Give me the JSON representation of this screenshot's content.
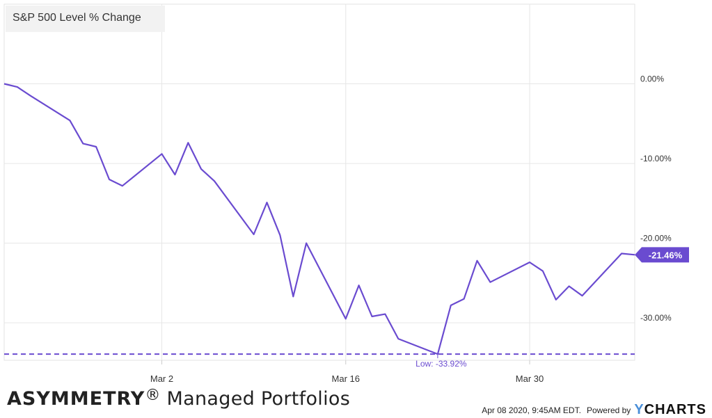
{
  "chart_data": {
    "type": "line",
    "title": "S&P 500 Level % Change",
    "series": [
      {
        "name": "S&P 500 Level % Change",
        "color": "#6a4bd0",
        "x": [
          "2020-02-19",
          "2020-02-20",
          "2020-02-21",
          "2020-02-24",
          "2020-02-25",
          "2020-02-26",
          "2020-02-27",
          "2020-02-28",
          "2020-03-02",
          "2020-03-03",
          "2020-03-04",
          "2020-03-05",
          "2020-03-06",
          "2020-03-09",
          "2020-03-10",
          "2020-03-11",
          "2020-03-12",
          "2020-03-13",
          "2020-03-16",
          "2020-03-17",
          "2020-03-18",
          "2020-03-19",
          "2020-03-20",
          "2020-03-23",
          "2020-03-24",
          "2020-03-25",
          "2020-03-26",
          "2020-03-27",
          "2020-03-30",
          "2020-03-31",
          "2020-04-01",
          "2020-04-02",
          "2020-04-03",
          "2020-04-06",
          "2020-04-07"
        ],
        "y": [
          0.0,
          -0.4,
          -1.5,
          -4.6,
          -7.5,
          -7.9,
          -12.0,
          -12.8,
          -8.8,
          -11.4,
          -7.4,
          -10.7,
          -12.2,
          -18.9,
          -14.9,
          -19.0,
          -26.7,
          -20.0,
          -29.5,
          -25.3,
          -29.2,
          -28.9,
          -32.0,
          -33.92,
          -27.8,
          -27.0,
          -22.2,
          -24.9,
          -22.4,
          -23.5,
          -27.1,
          -25.4,
          -26.6,
          -21.3,
          -21.46
        ]
      }
    ],
    "x_ticks": [
      {
        "date": "2020-03-02",
        "label": "Mar 2"
      },
      {
        "date": "2020-03-16",
        "label": "Mar 16"
      },
      {
        "date": "2020-03-30",
        "label": "Mar 30"
      }
    ],
    "y_ticks": [
      {
        "value": 0,
        "label": "0.00%"
      },
      {
        "value": -10,
        "label": "-10.00%"
      },
      {
        "value": -20,
        "label": "-20.00%"
      },
      {
        "value": -30,
        "label": "-30.00%"
      }
    ],
    "xlim": [
      "2020-02-19",
      "2020-04-07"
    ],
    "ylim": [
      -34.7,
      10
    ],
    "grid": true,
    "low_line": {
      "value": -33.92,
      "label": "Low: -33.92%"
    },
    "last_value": {
      "value": -21.46,
      "label": "-21.46%"
    },
    "accent_color": "#6a4bd0"
  },
  "brand": {
    "bold": "ASYMMETRY",
    "reg": "®",
    "rest": " Managed Portfolios"
  },
  "footer": {
    "timestamp": "Apr 08 2020, 9:45AM EDT.",
    "powered_by": "Powered by",
    "logo_y": "Y",
    "logo_rest": "CHARTS"
  }
}
